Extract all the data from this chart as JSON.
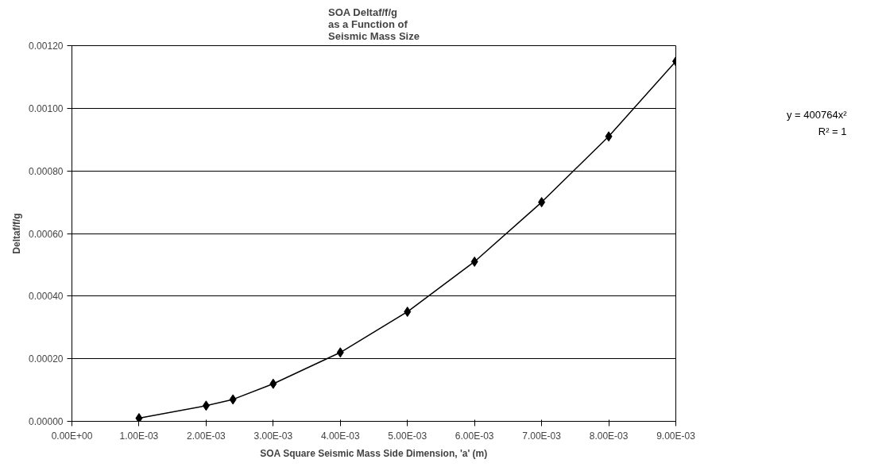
{
  "chart_data": {
    "type": "line",
    "title": "SOA Deltaf/f/g\nas a Function of\nSeismic Mass Size",
    "xlabel": "SOA Square Seismic Mass Side Dimension, 'a' (m)",
    "ylabel": "Deltaf/f/g",
    "x": [
      0.001,
      0.002,
      0.0024,
      0.003,
      0.004,
      0.005,
      0.006,
      0.007,
      0.008,
      0.009
    ],
    "series": [
      {
        "color": "#000000",
        "values": [
          1e-05,
          5e-05,
          7e-05,
          0.00012,
          0.00022,
          0.00035,
          0.00051,
          0.0007,
          0.00091,
          0.00115
        ]
      }
    ],
    "xlim": [
      0,
      0.009
    ],
    "ylim": [
      0,
      0.0012
    ],
    "xticks": [
      {
        "value": 0,
        "label": "0.00E+00"
      },
      {
        "value": 0.001,
        "label": "1.00E-03"
      },
      {
        "value": 0.002,
        "label": "2.00E-03"
      },
      {
        "value": 0.003,
        "label": "3.00E-03"
      },
      {
        "value": 0.004,
        "label": "4.00E-03"
      },
      {
        "value": 0.005,
        "label": "5.00E-03"
      },
      {
        "value": 0.006,
        "label": "6.00E-03"
      },
      {
        "value": 0.007,
        "label": "7.00E-03"
      },
      {
        "value": 0.008,
        "label": "8.00E-03"
      },
      {
        "value": 0.009,
        "label": "9.00E-03"
      }
    ],
    "yticks": [
      {
        "value": 0,
        "label": "0.00000"
      },
      {
        "value": 0.0002,
        "label": "0.00020"
      },
      {
        "value": 0.0004,
        "label": "0.00040"
      },
      {
        "value": 0.0006,
        "label": "0.00060"
      },
      {
        "value": 0.0008,
        "label": "0.00080"
      },
      {
        "value": 0.001,
        "label": "0.00100"
      },
      {
        "value": 0.0012,
        "label": "0.00120"
      }
    ],
    "grid": "y",
    "marker": "diamond",
    "line_style": "solid",
    "annotations": [
      "y = 400764x²",
      "R² = 1"
    ]
  }
}
